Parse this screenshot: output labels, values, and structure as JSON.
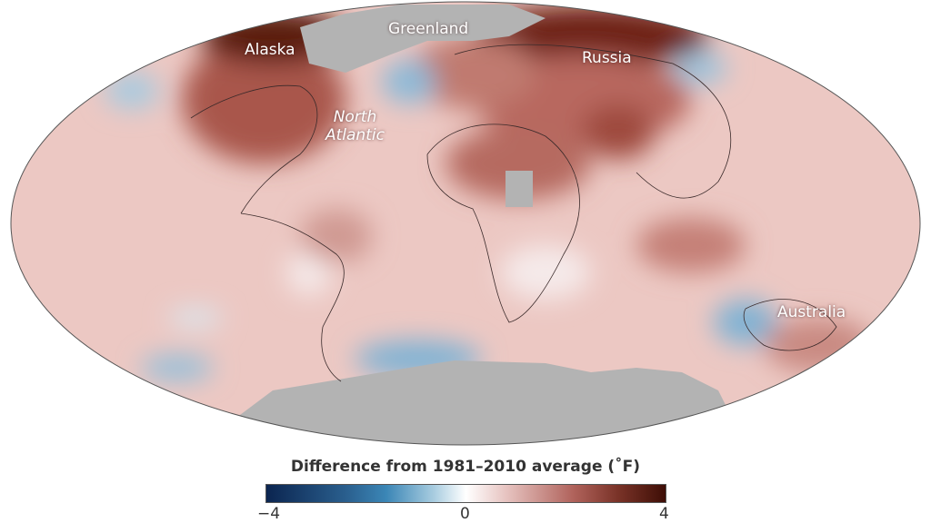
{
  "map": {
    "projection": "Mollweide",
    "labels": {
      "alaska": "Alaska",
      "greenland": "Greenland",
      "russia": "Russia",
      "north_atlantic_line1": "North",
      "north_atlantic_line2": "Atlantic",
      "australia": "Australia"
    },
    "colors": {
      "ocean_base": "#ecc6c1",
      "warm": "#a04a3e",
      "cold": "#6fa7cd",
      "no_data": "#b3b3b3"
    }
  },
  "legend": {
    "title": "Difference from 1981–2010 average (˚F)",
    "min_label": "−4",
    "mid_label": "0",
    "max_label": "4",
    "range": [
      -4,
      4
    ]
  }
}
